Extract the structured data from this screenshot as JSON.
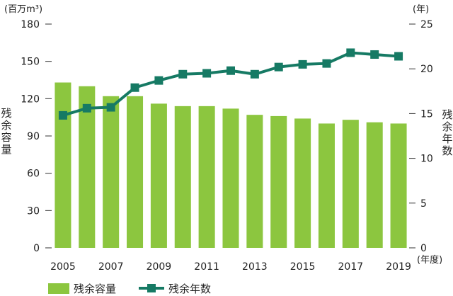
{
  "chart_data": {
    "type": "bar",
    "categories": [
      "2005",
      "2006",
      "2007",
      "2008",
      "2009",
      "2010",
      "2011",
      "2012",
      "2013",
      "2014",
      "2015",
      "2016",
      "2017",
      "2018",
      "2019"
    ],
    "x_tick_labels": [
      "2005",
      "2007",
      "2009",
      "2011",
      "2013",
      "2015",
      "2017",
      "2019"
    ],
    "x_unit": "(年度)",
    "left_axis": {
      "unit": "(百万m³)",
      "label": "残余容量",
      "ylim": [
        0,
        180
      ],
      "ticks": [
        "0",
        "30",
        "60",
        "90",
        "120",
        "150",
        "180"
      ]
    },
    "right_axis": {
      "unit": "(年)",
      "label": "残余年数",
      "ylim": [
        0,
        25
      ],
      "ticks": [
        "0",
        "5",
        "10",
        "15",
        "20",
        "25"
      ]
    },
    "series": [
      {
        "name": "残余容量",
        "type": "bar",
        "axis": "left",
        "color": "#8cc63f",
        "values": [
          133,
          130,
          122,
          122,
          116,
          114,
          114,
          112,
          107,
          106,
          104,
          100,
          103,
          101,
          100
        ]
      },
      {
        "name": "残余年数",
        "type": "line",
        "axis": "right",
        "color": "#167a64",
        "values": [
          14.8,
          15.6,
          15.7,
          17.9,
          18.7,
          19.4,
          19.5,
          19.8,
          19.4,
          20.2,
          20.5,
          20.6,
          21.8,
          21.6,
          21.4
        ]
      }
    ],
    "legend": [
      "残余容量",
      "残余年数"
    ],
    "legend_position": "bottom-left",
    "grid": false
  }
}
